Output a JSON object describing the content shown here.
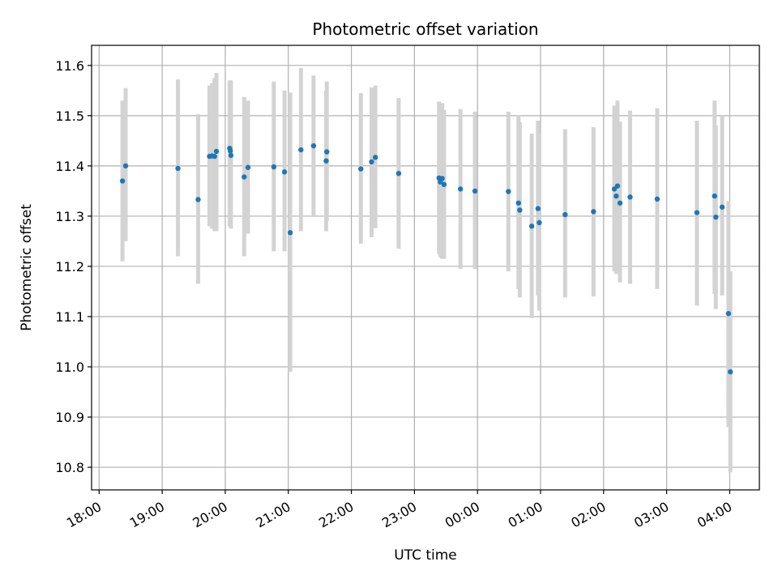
{
  "chart_data": {
    "type": "scatter",
    "title": "Photometric offset variation",
    "xlabel": "UTC time",
    "ylabel": "Photometric offset",
    "grid": true,
    "x_ticks": [
      "18:00",
      "19:00",
      "20:00",
      "21:00",
      "22:00",
      "23:00",
      "00:00",
      "01:00",
      "02:00",
      "03:00",
      "04:00"
    ],
    "xlim": [
      -0.12,
      10.47
    ],
    "ylim": [
      10.755,
      11.64
    ],
    "y_ticks": [
      "10.8",
      "10.9",
      "11.0",
      "11.1",
      "11.2",
      "11.3",
      "11.4",
      "11.5",
      "11.6"
    ],
    "colors": {
      "point": "#1f77b4",
      "errorbar": "#d3d3d3",
      "grid": "#b0b0b0"
    },
    "series": [
      {
        "x": [
          0.37,
          0.42,
          1.25,
          1.57,
          1.75,
          1.79,
          1.83,
          1.86,
          2.07,
          2.08,
          2.09,
          2.3,
          2.36,
          2.77,
          2.94,
          3.03,
          3.2,
          3.4,
          3.6,
          3.61,
          4.15,
          4.32,
          4.38,
          4.75,
          5.39,
          5.41,
          5.44,
          5.47,
          5.73,
          5.96,
          6.49,
          6.65,
          6.67,
          6.86,
          6.96,
          6.98,
          7.39,
          7.84,
          8.17,
          8.2,
          8.22,
          8.26,
          8.42,
          8.85,
          9.48,
          9.76,
          9.78,
          9.88,
          9.98,
          10.01
        ],
        "y": [
          11.37,
          11.4,
          11.395,
          11.333,
          11.419,
          11.42,
          11.419,
          11.429,
          11.435,
          11.43,
          11.421,
          11.378,
          11.397,
          11.398,
          11.388,
          11.267,
          11.432,
          11.44,
          11.41,
          11.428,
          11.394,
          11.408,
          11.417,
          11.385,
          11.376,
          11.368,
          11.375,
          11.363,
          11.354,
          11.35,
          11.349,
          11.326,
          11.312,
          11.28,
          11.315,
          11.287,
          11.303,
          11.309,
          11.354,
          11.34,
          11.36,
          11.326,
          11.338,
          11.334,
          11.307,
          11.34,
          11.298,
          11.318,
          11.106,
          10.99
        ],
        "y_low": [
          11.21,
          11.25,
          11.22,
          11.165,
          11.28,
          11.275,
          11.27,
          11.27,
          11.28,
          11.28,
          11.275,
          11.22,
          11.265,
          11.23,
          11.23,
          10.99,
          11.27,
          11.3,
          11.27,
          11.29,
          11.245,
          11.258,
          11.276,
          11.235,
          11.225,
          11.218,
          11.215,
          11.215,
          11.195,
          11.195,
          11.19,
          11.155,
          11.138,
          11.097,
          11.142,
          11.112,
          11.138,
          11.14,
          11.19,
          11.185,
          11.19,
          11.168,
          11.165,
          11.155,
          11.122,
          11.145,
          11.115,
          11.142,
          10.88,
          10.79
        ],
        "y_high": [
          11.53,
          11.555,
          11.572,
          11.503,
          11.56,
          11.565,
          11.575,
          11.585,
          11.57,
          11.57,
          11.57,
          11.537,
          11.53,
          11.568,
          11.55,
          11.546,
          11.595,
          11.58,
          11.55,
          11.568,
          11.545,
          11.556,
          11.56,
          11.535,
          11.528,
          11.52,
          11.525,
          11.512,
          11.513,
          11.508,
          11.508,
          11.501,
          11.487,
          11.464,
          11.49,
          11.465,
          11.473,
          11.477,
          11.52,
          11.495,
          11.53,
          11.488,
          11.51,
          11.515,
          11.49,
          11.53,
          11.48,
          11.5,
          11.33,
          11.19
        ]
      }
    ]
  }
}
